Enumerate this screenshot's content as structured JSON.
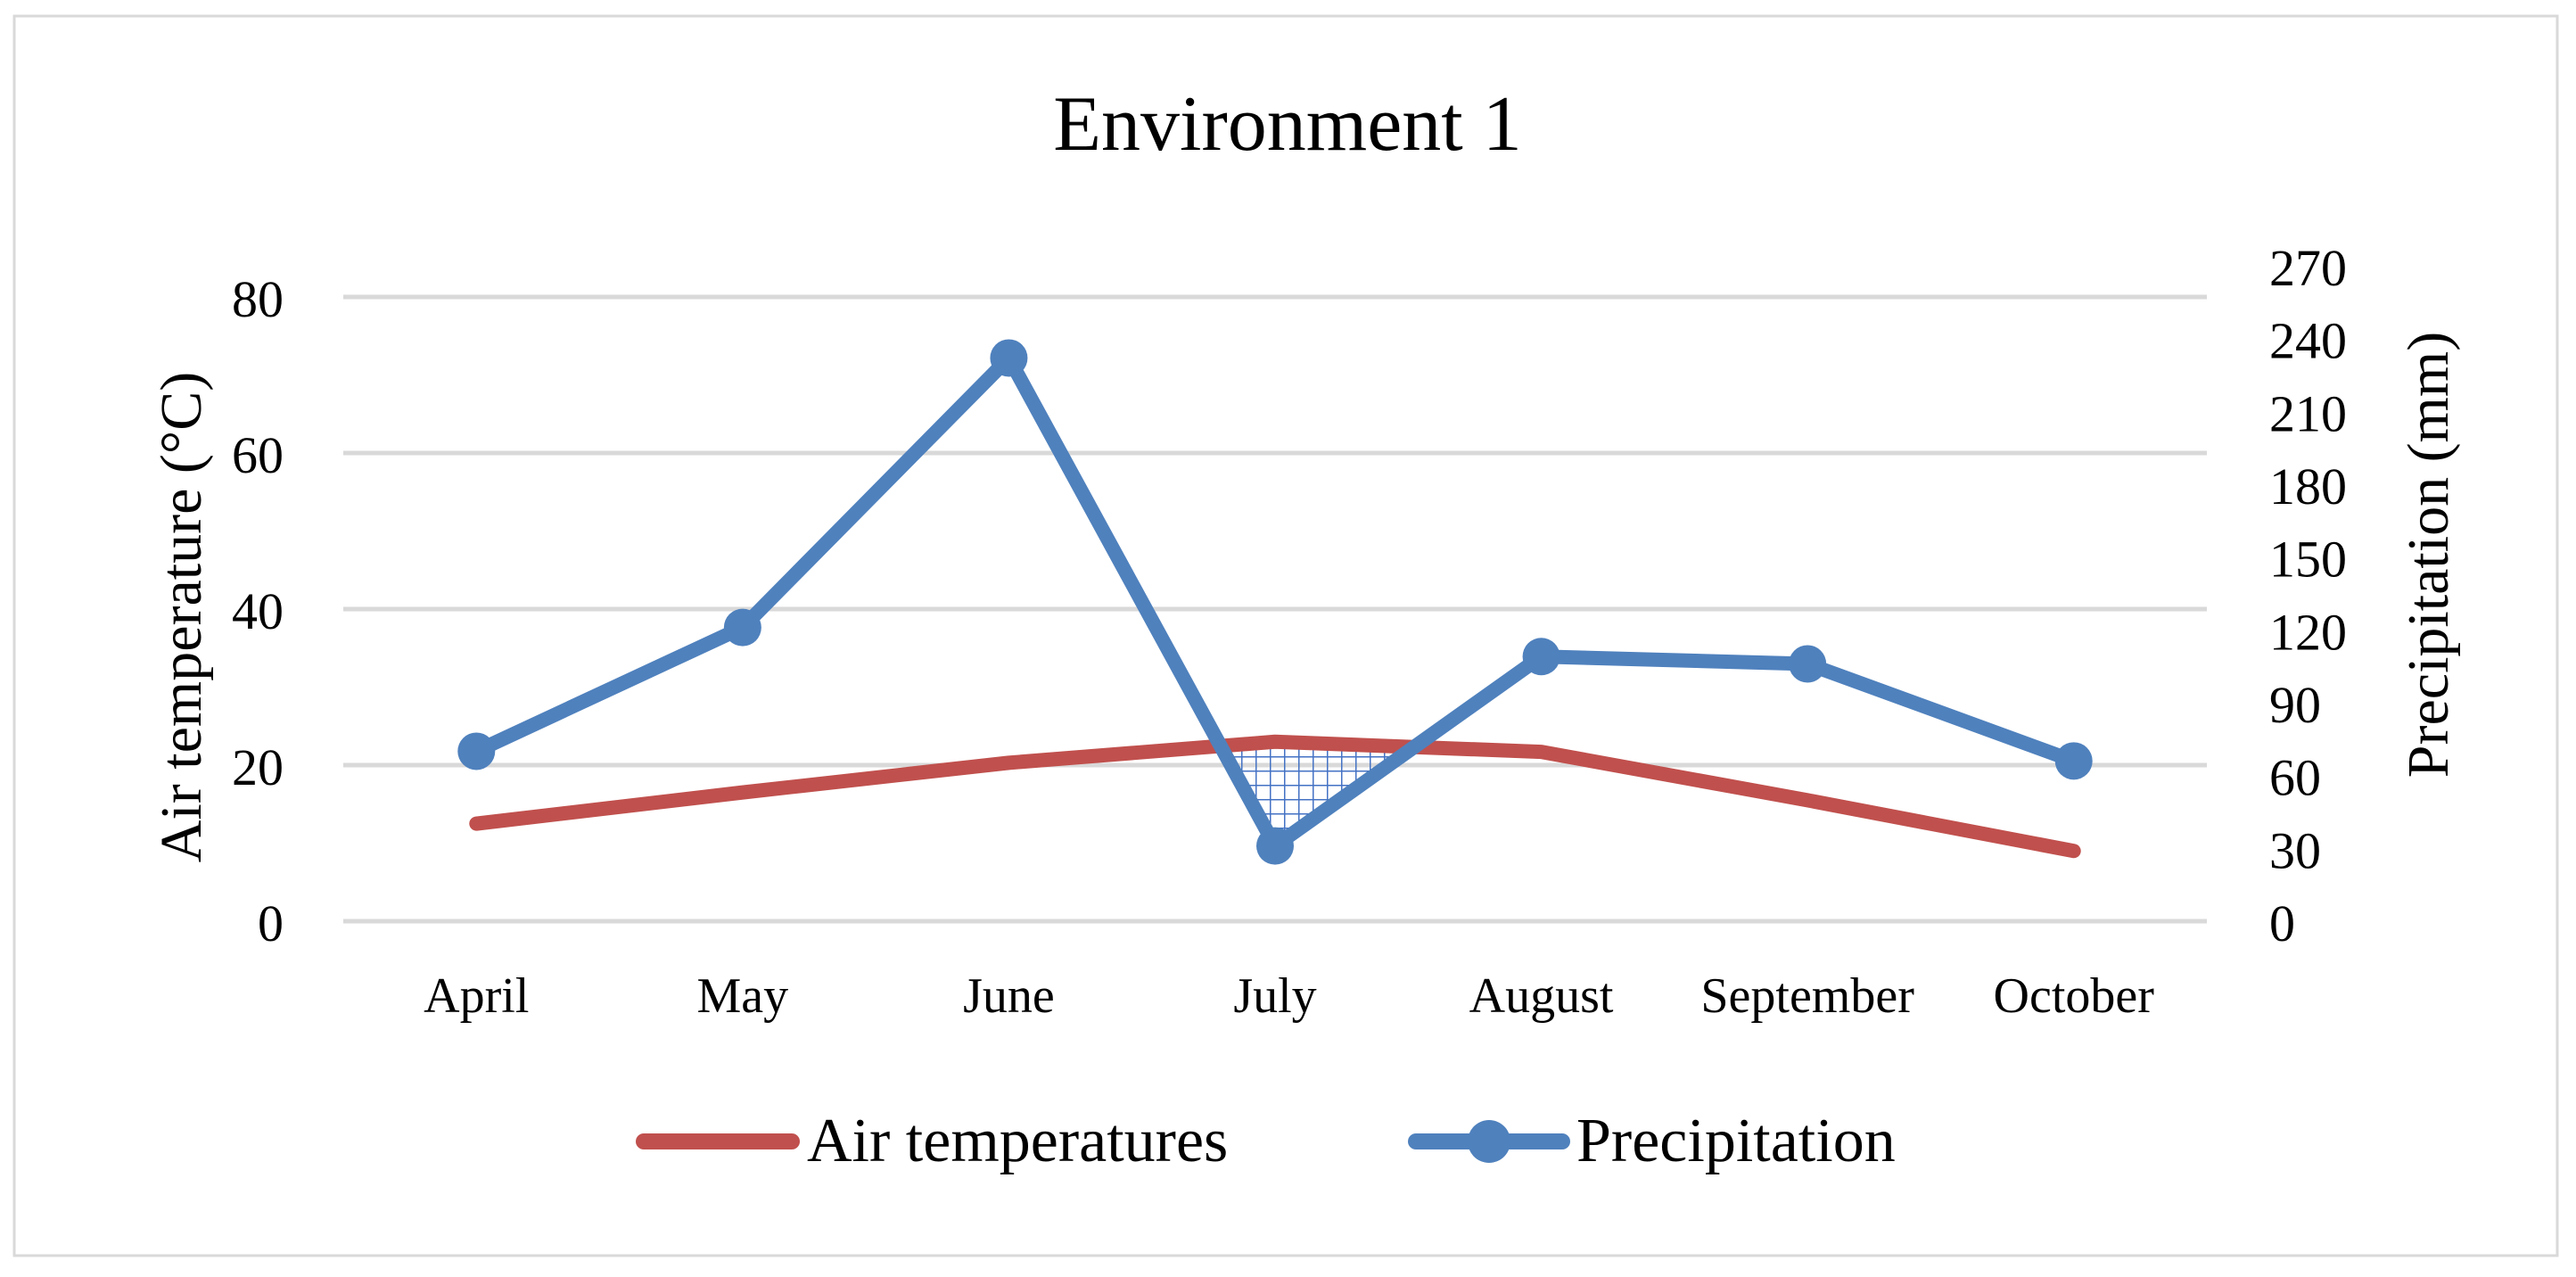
{
  "chart_data": {
    "type": "line",
    "title": "Environment 1",
    "categories": [
      "April",
      "May",
      "June",
      "July",
      "August",
      "September",
      "October"
    ],
    "ylabel_left": "Air temperature (°C)",
    "ylabel_right": "Precipitation (mm)",
    "ylim_left": [
      0,
      80
    ],
    "yticks_left": [
      0,
      20,
      40,
      60,
      80
    ],
    "ylim_right": [
      0,
      270
    ],
    "yticks_right": [
      0,
      30,
      60,
      90,
      120,
      150,
      180,
      210,
      240,
      270
    ],
    "grid": true,
    "legend_position": "bottom",
    "series": [
      {
        "name": "Air temperatures",
        "axis": "left",
        "color": "#C0504D",
        "markers": false,
        "values": [
          12.5,
          16.5,
          20.3,
          23.0,
          21.7,
          15.5,
          9.0
        ]
      },
      {
        "name": "Precipitation",
        "axis": "right",
        "color": "#4F81BD",
        "markers": true,
        "values": [
          70,
          121,
          232,
          31,
          109,
          106,
          66
        ]
      }
    ],
    "annotations": [
      {
        "type": "hatched-drought-region",
        "between": [
          "Air temperatures",
          "Precipitation"
        ],
        "near": "July",
        "color": "#4472C4"
      }
    ]
  }
}
